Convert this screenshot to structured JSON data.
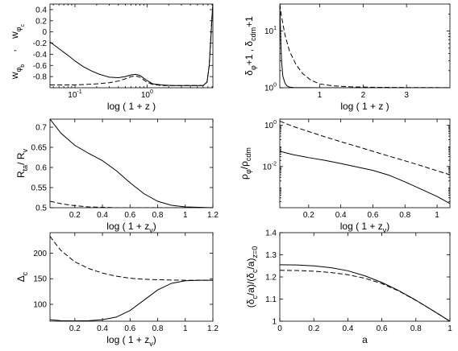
{
  "chart_data": [
    {
      "id": "a",
      "type": "line",
      "xscale": "log",
      "yscale": "linear",
      "xlim": [
        0.045,
        8.2
      ],
      "ylim": [
        -1.0,
        0.5
      ],
      "xticks": [
        0.1,
        1
      ],
      "xtick_labels": [
        "10^-1",
        "10^0"
      ],
      "yticks": [
        0.4,
        0.2,
        0,
        -0.2,
        -0.4,
        -0.6,
        -0.8
      ],
      "ytick_labels": [
        "0.4",
        "0.2",
        "0",
        "-0.2",
        "-0.4",
        "-0.6",
        "-0.8"
      ],
      "xlabel": "log ( 1 + z )",
      "ylabel_top": "w",
      "ylabel_top_sub": "φ",
      "ylabel_top_subsub": "c",
      "ylabel_sep": ",",
      "ylabel_bottom": "w",
      "ylabel_bottom_sub": "φ",
      "ylabel_bottom_subsub": "b",
      "series": [
        {
          "style": "solid",
          "x": [
            0.045,
            0.06,
            0.08,
            0.1,
            0.13,
            0.17,
            0.22,
            0.3,
            0.4,
            0.5,
            0.6,
            0.7,
            0.8,
            0.9,
            1.0,
            1.2,
            1.6,
            2.2,
            3.2,
            4.5,
            6.0,
            6.8,
            7.3,
            7.7,
            8.0,
            8.2
          ],
          "y": [
            -0.18,
            -0.3,
            -0.42,
            -0.52,
            -0.62,
            -0.7,
            -0.76,
            -0.81,
            -0.82,
            -0.8,
            -0.77,
            -0.76,
            -0.78,
            -0.83,
            -0.87,
            -0.93,
            -0.95,
            -0.96,
            -0.96,
            -0.96,
            -0.96,
            -0.9,
            -0.6,
            -0.1,
            0.3,
            0.5
          ]
        },
        {
          "style": "dashed",
          "x": [
            0.045,
            0.1,
            0.2,
            0.3,
            0.4,
            0.5,
            0.6,
            0.7,
            0.8,
            0.9,
            1.0,
            1.2,
            1.6,
            2.2,
            3.2,
            4.5,
            6.0,
            6.8,
            7.3,
            7.6,
            7.9,
            8.2
          ],
          "y": [
            -0.95,
            -0.95,
            -0.93,
            -0.91,
            -0.88,
            -0.84,
            -0.8,
            -0.79,
            -0.81,
            -0.86,
            -0.9,
            -0.94,
            -0.96,
            -0.96,
            -0.96,
            -0.96,
            -0.96,
            -0.9,
            -0.6,
            -0.2,
            0.2,
            0.5
          ]
        }
      ]
    },
    {
      "id": "b",
      "type": "line",
      "xscale": "linear",
      "yscale": "log",
      "xlim": [
        0.08,
        4.0
      ],
      "ylim": [
        1,
        30
      ],
      "xticks": [
        1,
        2,
        3
      ],
      "xtick_labels": [
        "1",
        "2",
        "3"
      ],
      "yticks": [
        1,
        10
      ],
      "ytick_labels": [
        "10^0",
        "10^1"
      ],
      "xlabel": "log ( 1 + z )",
      "ylabel_left": "δ",
      "ylabel_left_sub": "φ",
      "ylabel_mid": "+1 , δ",
      "ylabel_mid_sub": "cdm",
      "ylabel_right": "+1",
      "series": [
        {
          "style": "solid",
          "x": [
            0.08,
            0.1,
            0.12,
            0.15,
            0.2,
            0.25,
            0.3,
            0.4,
            0.6,
            1.0,
            2.0,
            3.0,
            4.0
          ],
          "y": [
            30,
            8,
            3,
            1.6,
            1.2,
            1.07,
            1.03,
            1.01,
            1.003,
            1.001,
            1.0,
            1.0,
            1.0
          ]
        },
        {
          "style": "dashed",
          "x": [
            0.08,
            0.12,
            0.2,
            0.3,
            0.45,
            0.6,
            0.8,
            1.0,
            1.3,
            1.7,
            2.2,
            3.0,
            4.0
          ],
          "y": [
            30,
            18,
            8.5,
            4.5,
            2.6,
            1.8,
            1.35,
            1.17,
            1.08,
            1.04,
            1.02,
            1.01,
            1.005
          ]
        }
      ]
    },
    {
      "id": "c",
      "type": "line",
      "xscale": "linear",
      "yscale": "linear",
      "xlim": [
        0.02,
        1.2
      ],
      "ylim": [
        0.5,
        0.72
      ],
      "xticks": [
        0.2,
        0.4,
        0.6,
        0.8,
        1.0,
        1.2
      ],
      "xtick_labels": [
        "0.2",
        "0.4",
        "0.6",
        "0.8",
        "1",
        "1.2"
      ],
      "yticks": [
        0.5,
        0.55,
        0.6,
        0.65,
        0.7
      ],
      "ytick_labels": [
        "0.5",
        "0.55",
        "0.6",
        "0.65",
        "0.7"
      ],
      "xlabel": "log ( 1 + z",
      "xlabel_sub": "v",
      "xlabel_end": ")",
      "ylabel": "R",
      "ylabel_sub": "ta",
      "ylabel_mid": "/ R",
      "ylabel_sub2": "v",
      "series": [
        {
          "style": "solid",
          "x": [
            0.02,
            0.1,
            0.2,
            0.3,
            0.4,
            0.5,
            0.6,
            0.7,
            0.8,
            0.9,
            1.0,
            1.1,
            1.2
          ],
          "y": [
            0.72,
            0.685,
            0.655,
            0.635,
            0.617,
            0.592,
            0.562,
            0.535,
            0.516,
            0.506,
            0.502,
            0.501,
            0.5
          ]
        },
        {
          "style": "dashed",
          "x": [
            0.02,
            0.1,
            0.2,
            0.3,
            0.4,
            0.5,
            0.6,
            0.8,
            1.0,
            1.2
          ],
          "y": [
            0.516,
            0.51,
            0.505,
            0.502,
            0.501,
            0.5,
            0.5,
            0.5,
            0.5,
            0.5
          ]
        }
      ]
    },
    {
      "id": "d",
      "type": "line",
      "xscale": "linear",
      "yscale": "log",
      "xlim": [
        0.02,
        1.08
      ],
      "ylim": [
        0.0001,
        2
      ],
      "xticks": [
        0.2,
        0.4,
        0.6,
        0.8,
        1.0
      ],
      "xtick_labels": [
        "0.2",
        "0.4",
        "0.6",
        "0.8",
        "1"
      ],
      "yticks": [
        1,
        0.01
      ],
      "ytick_labels": [
        "10^0",
        "10^-2"
      ],
      "xlabel": "log ( 1 + z",
      "xlabel_sub": "v",
      "xlabel_end": ")",
      "ylabel": "ρ",
      "ylabel_sub": "φ",
      "ylabel_mid": "/ρ",
      "ylabel_sub2": "cdm",
      "series": [
        {
          "style": "solid",
          "x": [
            0.02,
            0.1,
            0.2,
            0.3,
            0.4,
            0.5,
            0.6,
            0.7,
            0.8,
            0.9,
            1.0,
            1.08
          ],
          "y": [
            0.055,
            0.038,
            0.027,
            0.02,
            0.014,
            0.0095,
            0.0065,
            0.0038,
            0.0018,
            0.0008,
            0.00035,
            0.00016
          ]
        },
        {
          "style": "dashed",
          "x": [
            0.02,
            0.1,
            0.2,
            0.3,
            0.4,
            0.5,
            0.6,
            0.7,
            0.8,
            0.9,
            1.0,
            1.08
          ],
          "y": [
            1.6,
            0.9,
            0.5,
            0.28,
            0.16,
            0.095,
            0.055,
            0.032,
            0.019,
            0.011,
            0.0062,
            0.004
          ]
        }
      ]
    },
    {
      "id": "e",
      "type": "line",
      "xscale": "linear",
      "yscale": "linear",
      "xlim": [
        0.02,
        1.2
      ],
      "ylim": [
        67,
        240
      ],
      "xticks": [
        0.2,
        0.4,
        0.6,
        0.8,
        1.0,
        1.2
      ],
      "xtick_labels": [
        "0.2",
        "0.4",
        "0.6",
        "0.8",
        "1",
        "1.2"
      ],
      "yticks": [
        100,
        150,
        200
      ],
      "ytick_labels": [
        "100",
        "150",
        "200"
      ],
      "xlabel": "log ( 1 + z",
      "xlabel_sub": "v",
      "xlabel_end": ")",
      "ylabel": "Δ",
      "ylabel_sub": "c",
      "series": [
        {
          "style": "solid",
          "x": [
            0.02,
            0.1,
            0.2,
            0.3,
            0.4,
            0.5,
            0.6,
            0.7,
            0.8,
            0.9,
            1.0,
            1.1,
            1.2
          ],
          "y": [
            70,
            68,
            67.5,
            68,
            70,
            75,
            88,
            108,
            128,
            141,
            146,
            147,
            147
          ]
        },
        {
          "style": "dashed",
          "x": [
            0.02,
            0.05,
            0.1,
            0.2,
            0.3,
            0.4,
            0.5,
            0.6,
            0.7,
            0.8,
            0.9,
            1.0,
            1.1,
            1.2
          ],
          "y": [
            233,
            222,
            205,
            183,
            170,
            161,
            155,
            151,
            149,
            148,
            147.5,
            147,
            147,
            147
          ]
        }
      ]
    },
    {
      "id": "f",
      "type": "line",
      "xscale": "linear",
      "yscale": "linear",
      "xlim": [
        0,
        1
      ],
      "ylim": [
        1.0,
        1.4
      ],
      "xticks": [
        0,
        0.2,
        0.4,
        0.6,
        0.8,
        1.0
      ],
      "xtick_labels": [
        "0",
        "0.2",
        "0.4",
        "0.6",
        "0.8",
        "1"
      ],
      "yticks": [
        1.0,
        1.1,
        1.2,
        1.3,
        1.4
      ],
      "ytick_labels": [
        "1",
        "1.1",
        "1.2",
        "1.3",
        "1.4"
      ],
      "xlabel": "a",
      "ylabel": "(δ",
      "ylabel_sub": "c",
      "ylabel_mid": "/a)/(δ",
      "ylabel_sub2": "c",
      "ylabel_mid2": "/a)",
      "ylabel_sub3": "z=0",
      "series": [
        {
          "style": "solid",
          "x": [
            0,
            0.1,
            0.2,
            0.3,
            0.4,
            0.5,
            0.6,
            0.7,
            0.8,
            0.9,
            1.0
          ],
          "y": [
            1.255,
            1.254,
            1.25,
            1.242,
            1.228,
            1.205,
            1.175,
            1.138,
            1.095,
            1.048,
            1.0
          ]
        },
        {
          "style": "dashed",
          "x": [
            0,
            0.1,
            0.2,
            0.3,
            0.4,
            0.5,
            0.6,
            0.7,
            0.8,
            0.9,
            1.0
          ],
          "y": [
            1.23,
            1.229,
            1.226,
            1.22,
            1.21,
            1.194,
            1.17,
            1.136,
            1.094,
            1.048,
            1.0
          ]
        }
      ]
    }
  ]
}
